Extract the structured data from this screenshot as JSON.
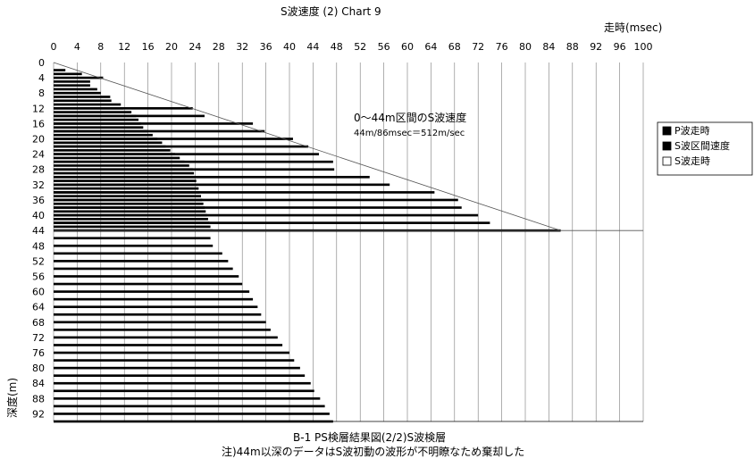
{
  "chart_data": {
    "type": "bar",
    "orientation": "horizontal",
    "title": "S波速度 (2) Chart 9",
    "xlabel": "走時(msec)",
    "ylabel": "深度(m)",
    "xlim": [
      0,
      100
    ],
    "x_ticks": [
      0,
      4,
      8,
      12,
      16,
      20,
      24,
      28,
      32,
      36,
      40,
      44,
      48,
      52,
      56,
      60,
      64,
      68,
      72,
      76,
      80,
      84,
      88,
      92,
      96,
      100
    ],
    "ylim": [
      0,
      94
    ],
    "y_ticks": [
      0,
      4,
      8,
      12,
      16,
      20,
      24,
      28,
      32,
      36,
      40,
      44,
      48,
      52,
      56,
      60,
      64,
      68,
      72,
      76,
      80,
      84,
      88,
      92
    ],
    "grid": "vertical",
    "legend_position": "right",
    "legend": [
      {
        "label": "P波走時",
        "swatch": "#000000"
      },
      {
        "label": "S波区間速度",
        "swatch": "#000000"
      },
      {
        "label": "S波走時",
        "swatch": "#ffffff"
      }
    ],
    "series": [
      {
        "name": "S波走時",
        "depths": [
          2,
          3,
          4,
          5,
          6,
          7,
          8,
          9,
          10,
          11,
          12,
          13,
          14,
          15,
          16,
          17,
          18,
          19,
          20,
          21,
          22,
          23,
          24,
          25,
          26,
          27,
          28,
          29,
          30,
          31,
          32,
          33,
          34,
          35,
          36,
          37,
          38,
          39,
          40,
          41,
          42,
          43,
          44
        ],
        "values": [
          2.0,
          4.8,
          8.4,
          6.2,
          6.2,
          7.4,
          8.0,
          9.6,
          9.8,
          11.4,
          11.8,
          13.2,
          14.0,
          14.4,
          14.8,
          15.2,
          16.0,
          16.8,
          17.6,
          18.4,
          19.0,
          19.8,
          20.6,
          21.4,
          22.2,
          23.0,
          23.6,
          23.8,
          24.0,
          24.2,
          24.4,
          24.6,
          24.8,
          25.0,
          25.2,
          25.4,
          25.6,
          25.8,
          26.0,
          26.2,
          26.4,
          26.6,
          27.0
        ]
      },
      {
        "name": "P波走時",
        "depths": [
          12,
          14,
          16,
          18,
          20,
          22,
          24,
          26,
          28,
          30,
          32,
          34,
          36,
          38,
          40,
          42,
          44
        ],
        "values": [
          23.6,
          25.6,
          33.8,
          35.8,
          40.6,
          43.2,
          45.0,
          47.4,
          47.6,
          53.6,
          57.0,
          64.6,
          68.6,
          69.2,
          72.0,
          74.0,
          86.0
        ]
      },
      {
        "name": "S波走時(44m以深)",
        "depths": [
          46,
          48,
          50,
          52,
          54,
          56,
          58,
          60,
          62,
          64,
          66,
          68,
          70,
          72,
          74,
          76,
          78,
          80,
          82,
          84,
          86,
          88,
          90,
          92,
          94
        ],
        "values": [
          26.6,
          27.0,
          28.6,
          29.6,
          30.4,
          31.4,
          32.0,
          33.2,
          33.8,
          34.6,
          35.2,
          36.0,
          36.8,
          38.0,
          38.8,
          40.0,
          40.8,
          41.8,
          42.6,
          43.6,
          44.2,
          45.2,
          46.0,
          46.8,
          47.4
        ]
      }
    ],
    "annotation": {
      "title": "0～44m区間のS波速度",
      "formula": "44m/86msec＝512m/sec",
      "reference_line": {
        "from": [
          0,
          0
        ],
        "to": [
          86,
          44
        ]
      }
    }
  },
  "captions": {
    "line1": "B-1 PS検層結果図(2/2)S波検層",
    "line2": "注)44m以深のデータはS波初動の波形が不明瞭なため棄却した"
  }
}
